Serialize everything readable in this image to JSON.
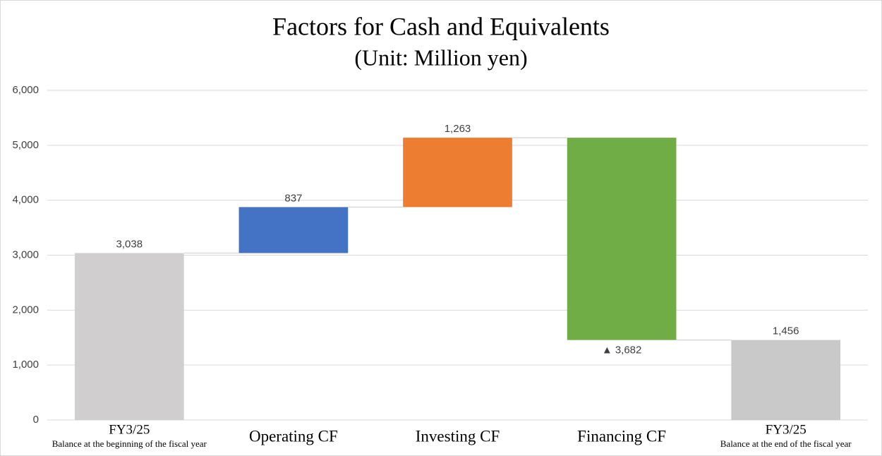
{
  "chart_data": {
    "type": "waterfall",
    "title": "Factors for Cash and Equivalents",
    "subtitle": "(Unit: Million yen)",
    "categories": [
      "FY3/25",
      "Operating CF",
      "Investing CF",
      "Financing CF",
      "FY3/25"
    ],
    "category_notes": [
      "Balance at the beginning of the fiscal year",
      null,
      null,
      null,
      "Balance at the end of the fiscal year"
    ],
    "measures": [
      "total",
      "relative",
      "relative",
      "relative",
      "total"
    ],
    "values": [
      3038,
      837,
      1263,
      -3682,
      1456
    ],
    "value_labels": [
      "3,038",
      "837",
      "1,263",
      "▲ 3,682",
      "1,456"
    ],
    "colors": [
      "#d0cece",
      "#4472c4",
      "#ed7d31",
      "#70ad47",
      "#c9c9c9"
    ],
    "ylim": [
      0,
      6000
    ],
    "yticks": [
      0,
      {
        "value": 1000,
        "label": "1,000"
      },
      {
        "value": 2000,
        "label": "2,000"
      },
      {
        "value": 3000,
        "label": "3,000"
      },
      {
        "value": 4000,
        "label": "4,000"
      },
      {
        "value": 5000,
        "label": "5,000"
      },
      {
        "value": 6000,
        "label": "6,000"
      }
    ],
    "grid": true
  }
}
